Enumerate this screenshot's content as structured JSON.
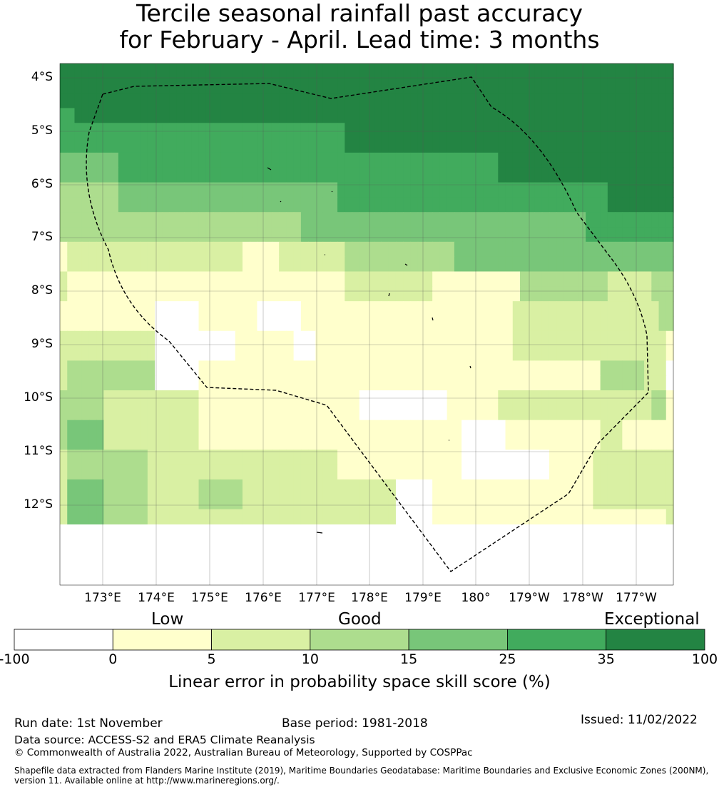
{
  "title": {
    "line1": "Tercile seasonal rainfall past accuracy",
    "line2": "for February - April. Lead time: 3 months"
  },
  "map": {
    "lat_labels": [
      "4°S",
      "5°S",
      "6°S",
      "7°S",
      "8°S",
      "9°S",
      "10°S",
      "11°S",
      "12°S"
    ],
    "lon_labels": [
      "173°E",
      "174°E",
      "175°E",
      "176°E",
      "177°E",
      "178°E",
      "179°E",
      "180°",
      "179°W",
      "178°W",
      "177°W"
    ],
    "grid_rows": [
      "666666666666666666666666666666666666666666666666666666666666666666666666666666666666",
      "666666666666666666666666666666666666666666666666666666666666666666666666666666666666",
      "666666666666666666666666666666666666666666666666666666666666666666666666666666666666",
      "556666666666666666666666666666666666666666666666666666666666666666666666666666666666",
      "555555555555555555555555555555555555555666666666666666666666666666666666666666666666",
      "555555555555555555555555555555555555555666666666666666666666666666666666666666666666",
      "444444445555555555555555555555555555555555555555555555555555666666666666666666666666",
      "444444445555555555555555555555555555555555555555555555555555666666666666666666666666",
      "333333334444444444444444444444444444445555555555555555555555555555555555555666666666",
      "333333334444444444444444444444444444445555555555555555555555555555555555555666666666",
      "333333333333333333333333333333333444444444444444444444444444444444444444555555555555",
      "333333333333333333333333333333333444444444444444444444444444444444444444555555555555",
      "122222222222222222222222211111222222222333333333333333444444444444444444444444444444",
      "122222222222222222222222211111222222222333333333333333444444444444444444444444444444",
      "211111111111111111111111111111111111111222222222222111111111111333333333333222222333",
      "211111111111111111111111111111111111111222222222222111111111111333333333333222222333",
      "1111111111111000000111111110000001111111111111111111111111111122222222222222222222332",
      "1111111111111000000111111110000001111111111111111111111111111122222222222222222222332",
      "222222222222200000000000111111110001111111111111111111111111112222222222222222222221",
      "222222222222200000000000111111110001111111111111111111111111112222222222222222222221",
      "233333333333300000011111111111111111111111111111111111111111111111111111113333332220",
      "233333333333300000011111111111111111111111111111111111111111111111111111113333332220",
      "333333222222222222211111111111111111111110000000000001111111222222222222222222222331",
      "333333222222222222211111111111111111111110000000000001111111222222222222222222222331",
      "344444222222222222211111111111111111111111111111111111100000011111111111112221111111",
      "344444222222222222211111111111111111111111111111111111100000011111111111112221111111",
      "233333333333222222222222222222222222221111111111111111100000000000011111122222222222",
      "233333333333222222222222222222222222221111111111111111100000000000011111122222222222",
      "244444333333222222233333322222222222222222222200000111111111111111111111122222222222",
      "244444333333222222233333322222222222222222222200000111111111111111111111122222222222",
      "244444333333222222222222222222222222222222222200000111111111111111111111111111111112"
    ]
  },
  "colorbar": {
    "categories": [
      "Low",
      "Good",
      "Exceptional"
    ],
    "tick_labels": [
      "-100",
      "0",
      "5",
      "10",
      "15",
      "25",
      "35",
      "100"
    ],
    "colors": [
      "#ffffff",
      "#ffffcc",
      "#d9f0a3",
      "#addd8e",
      "#78c679",
      "#41ab5d",
      "#238443"
    ],
    "label": "Linear error in probability space skill score (%)"
  },
  "footer": {
    "run_date": "Run date: 1st November",
    "base_period": "Base period: 1981-2018",
    "issued": "Issued: 11/02/2022",
    "data_source": "Data source: ACCESS-S2 and ERA5 Climate Reanalysis",
    "copyright": "© Commonwealth of Australia 2022, Australian Bureau of Meteorology, Supported by COSPPac",
    "shapefile_line1": "Shapefile data extracted from Flanders Marine Institute (2019), Maritime Boundaries Geodatabase: Maritime Boundaries and Exclusive Economic Zones (200NM),",
    "shapefile_line2": "version 11. Available online at http://www.marineregions.org/."
  }
}
